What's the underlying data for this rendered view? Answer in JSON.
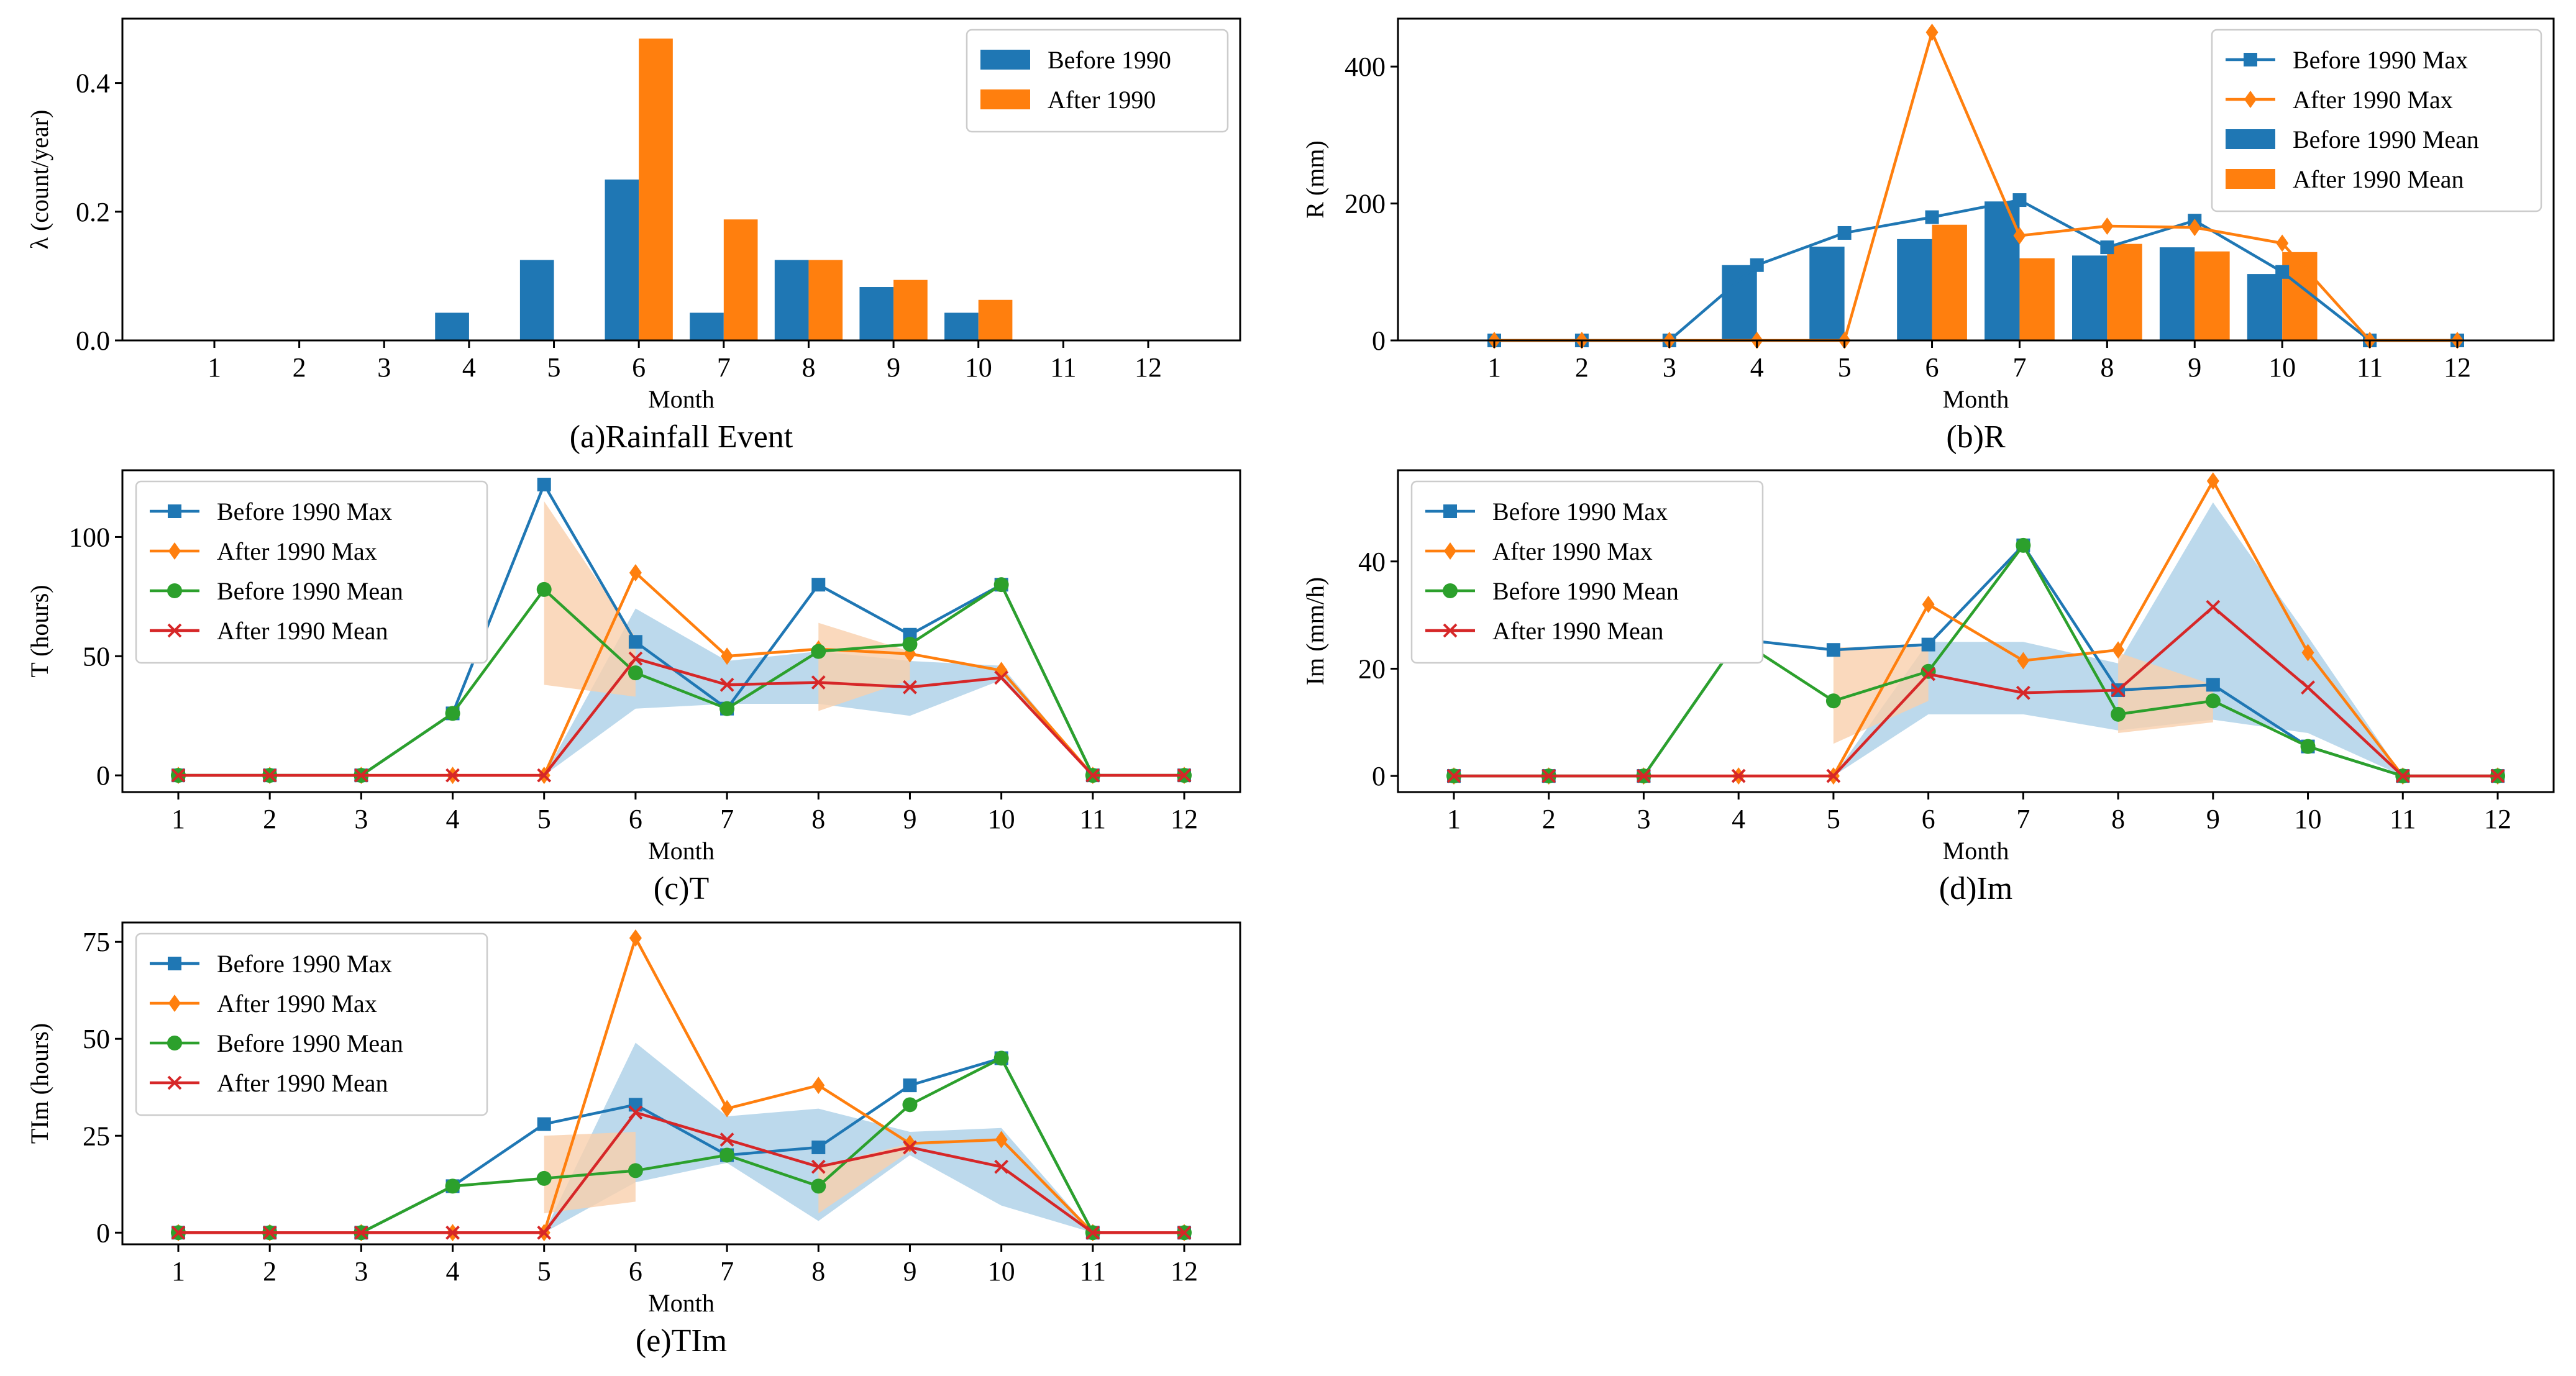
{
  "colors": {
    "before": "#1f77b4",
    "after": "#ff7f0e",
    "before_mean_line": "#2ca02c",
    "after_mean_line": "#d62728",
    "band_before": "#a6cce6",
    "band_after": "#f9d0ac"
  },
  "chart_data": [
    {
      "id": "a",
      "type": "bar",
      "caption": "(a)Rainfall Event",
      "xlabel": "Month",
      "ylabel": "λ (count/year)",
      "categories": [
        "1",
        "2",
        "3",
        "4",
        "5",
        "6",
        "7",
        "8",
        "9",
        "10",
        "11",
        "12"
      ],
      "ylim": [
        0,
        0.5
      ],
      "yticks": [
        0.0,
        0.2,
        0.4
      ],
      "ytick_labels": [
        "0.0",
        "0.2",
        "0.4"
      ],
      "legend": {
        "placement": "top-right"
      },
      "bars": [
        {
          "name": "Before 1990",
          "color": "before",
          "values": [
            0,
            0,
            0,
            0.043,
            0.125,
            0.25,
            0.043,
            0.125,
            0.083,
            0.043,
            0,
            0
          ]
        },
        {
          "name": "After 1990",
          "color": "after",
          "values": [
            0,
            0,
            0,
            0,
            0,
            0.469,
            0.188,
            0.125,
            0.094,
            0.063,
            0,
            0
          ]
        }
      ],
      "lines": [],
      "bands": []
    },
    {
      "id": "b",
      "type": "bar+line",
      "caption": "(b)R",
      "xlabel": "Month",
      "ylabel": "R (mm)",
      "categories": [
        "1",
        "2",
        "3",
        "4",
        "5",
        "6",
        "7",
        "8",
        "9",
        "10",
        "11",
        "12"
      ],
      "ylim": [
        0,
        470
      ],
      "yticks": [
        0,
        200,
        400
      ],
      "ytick_labels": [
        "0",
        "200",
        "400"
      ],
      "legend": {
        "placement": "top-right"
      },
      "lines": [
        {
          "name": "Before 1990 Max",
          "color": "before",
          "marker": "square",
          "values": [
            0,
            0,
            0,
            110,
            157,
            180,
            205,
            136,
            175,
            100,
            0,
            0
          ]
        },
        {
          "name": "After 1990 Max",
          "color": "after",
          "marker": "diamond",
          "values": [
            0,
            0,
            0,
            0,
            0,
            450,
            153,
            167,
            165,
            142,
            0,
            0
          ]
        }
      ],
      "bars": [
        {
          "name": "Before 1990 Mean",
          "color": "before",
          "values": [
            0,
            0,
            0,
            110,
            137,
            148,
            203,
            124,
            136,
            97,
            0,
            0
          ]
        },
        {
          "name": "After 1990 Mean",
          "color": "after",
          "values": [
            0,
            0,
            0,
            0,
            0,
            169,
            120,
            141,
            130,
            129,
            0,
            0
          ]
        }
      ],
      "bands": []
    },
    {
      "id": "c",
      "type": "line",
      "caption": "(c)T",
      "xlabel": "Month",
      "ylabel": "T (hours)",
      "categories": [
        "1",
        "2",
        "3",
        "4",
        "5",
        "6",
        "7",
        "8",
        "9",
        "10",
        "11",
        "12"
      ],
      "ylim": [
        -7,
        128
      ],
      "yticks": [
        0,
        50,
        100
      ],
      "ytick_labels": [
        "0",
        "50",
        "100"
      ],
      "legend": {
        "placement": "top-left"
      },
      "lines": [
        {
          "name": "Before 1990 Max",
          "color": "before",
          "marker": "square",
          "values": [
            0,
            0,
            0,
            26,
            122,
            56,
            28,
            80,
            59,
            80,
            0,
            0
          ]
        },
        {
          "name": "After 1990 Max",
          "color": "after",
          "marker": "diamond",
          "values": [
            0,
            0,
            0,
            0,
            0,
            85,
            50,
            53,
            51,
            44,
            0,
            0
          ]
        },
        {
          "name": "Before 1990 Mean",
          "color": "before_mean_line",
          "marker": "circle",
          "values": [
            0,
            0,
            0,
            26,
            78,
            43,
            28,
            52,
            55,
            80,
            0,
            0
          ]
        },
        {
          "name": "After 1990 Mean",
          "color": "after_mean_line",
          "marker": "x",
          "values": [
            0,
            0,
            0,
            0,
            0,
            49,
            38,
            39,
            37,
            41,
            0,
            0
          ]
        }
      ],
      "bars": [],
      "bands": [
        {
          "color": "band_before",
          "x": [
            5,
            6,
            7,
            8,
            9,
            10,
            11
          ],
          "lower": [
            0,
            28,
            30,
            30,
            25,
            40,
            0
          ],
          "upper": [
            0,
            70,
            48,
            52,
            48,
            46,
            0
          ]
        },
        {
          "color": "band_after",
          "x": [
            5,
            6
          ],
          "lower": [
            38,
            33
          ],
          "upper": [
            115,
            58
          ]
        },
        {
          "color": "band_after",
          "x": [
            8,
            9
          ],
          "lower": [
            27,
            40
          ],
          "upper": [
            64,
            52
          ]
        }
      ]
    },
    {
      "id": "d",
      "type": "line",
      "caption": "(d)Im",
      "xlabel": "Month",
      "ylabel": "Im (mm/h)",
      "categories": [
        "1",
        "2",
        "3",
        "4",
        "5",
        "6",
        "7",
        "8",
        "9",
        "10",
        "11",
        "12"
      ],
      "ylim": [
        -3,
        57
      ],
      "yticks": [
        0,
        20,
        40
      ],
      "ytick_labels": [
        "0",
        "20",
        "40"
      ],
      "legend": {
        "placement": "top-left"
      },
      "lines": [
        {
          "name": "Before 1990 Max",
          "color": "before",
          "marker": "square",
          "values": [
            0,
            0,
            0,
            25.5,
            23.5,
            24.5,
            43,
            16,
            17,
            5.5,
            0,
            0
          ]
        },
        {
          "name": "After 1990 Max",
          "color": "after",
          "marker": "diamond",
          "values": [
            0,
            0,
            0,
            0,
            0,
            32,
            21.5,
            23.5,
            55,
            23,
            0,
            0
          ]
        },
        {
          "name": "Before 1990 Mean",
          "color": "before_mean_line",
          "marker": "circle",
          "values": [
            0,
            0,
            0,
            25.5,
            14,
            19.5,
            43,
            11.5,
            14,
            5.5,
            0,
            0
          ]
        },
        {
          "name": "After 1990 Mean",
          "color": "after_mean_line",
          "marker": "x",
          "values": [
            0,
            0,
            0,
            0,
            0,
            19,
            15.5,
            16,
            31.5,
            16.5,
            0,
            0
          ]
        }
      ],
      "bars": [],
      "bands": [
        {
          "color": "band_before",
          "x": [
            5,
            6,
            7,
            8,
            9,
            10,
            11
          ],
          "lower": [
            0,
            11.5,
            11.5,
            8.5,
            10.5,
            8,
            0
          ],
          "upper": [
            0,
            25,
            25,
            21,
            51,
            26,
            0
          ]
        },
        {
          "color": "band_after",
          "x": [
            5,
            6
          ],
          "lower": [
            6,
            14
          ],
          "upper": [
            24,
            24
          ]
        },
        {
          "color": "band_after",
          "x": [
            8,
            9
          ],
          "lower": [
            8,
            10
          ],
          "upper": [
            23,
            17
          ]
        }
      ]
    },
    {
      "id": "e",
      "type": "line",
      "caption": "(e)TIm",
      "xlabel": "Month",
      "ylabel": "TIm (hours)",
      "categories": [
        "1",
        "2",
        "3",
        "4",
        "5",
        "6",
        "7",
        "8",
        "9",
        "10",
        "11",
        "12"
      ],
      "ylim": [
        -3,
        80
      ],
      "yticks": [
        0,
        25,
        50,
        75
      ],
      "ytick_labels": [
        "0",
        "25",
        "50",
        "75"
      ],
      "legend": {
        "placement": "top-left"
      },
      "lines": [
        {
          "name": "Before 1990 Max",
          "color": "before",
          "marker": "square",
          "values": [
            0,
            0,
            0,
            12,
            28,
            33,
            20,
            22,
            38,
            45,
            0,
            0
          ]
        },
        {
          "name": "After 1990 Max",
          "color": "after",
          "marker": "diamond",
          "values": [
            0,
            0,
            0,
            0,
            0,
            76,
            32,
            38,
            23,
            24,
            0,
            0
          ]
        },
        {
          "name": "Before 1990 Mean",
          "color": "before_mean_line",
          "marker": "circle",
          "values": [
            0,
            0,
            0,
            12,
            14,
            16,
            20,
            12,
            33,
            45,
            0,
            0
          ]
        },
        {
          "name": "After 1990 Mean",
          "color": "after_mean_line",
          "marker": "x",
          "values": [
            0,
            0,
            0,
            0,
            0,
            31,
            24,
            17,
            22,
            17,
            0,
            0
          ]
        }
      ],
      "bars": [],
      "bands": [
        {
          "color": "band_before",
          "x": [
            5,
            6,
            7,
            8,
            9,
            10,
            11
          ],
          "lower": [
            0,
            13,
            18,
            3,
            20,
            7,
            0
          ],
          "upper": [
            0,
            49,
            30,
            32,
            26,
            27,
            0
          ]
        },
        {
          "color": "band_after",
          "x": [
            5,
            6
          ],
          "lower": [
            5,
            8
          ],
          "upper": [
            25,
            26
          ]
        },
        {
          "color": "band_after",
          "x": [
            8,
            9
          ],
          "lower": [
            5,
            21
          ],
          "upper": [
            17,
            23
          ]
        }
      ]
    }
  ]
}
